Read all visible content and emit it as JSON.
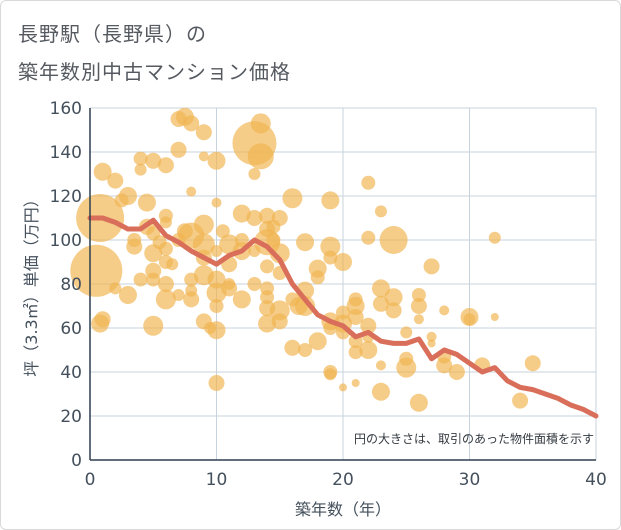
{
  "header": {
    "title_line1": "長野駅（長野県）の",
    "title_line2": "築年数別中古マンション価格"
  },
  "chart_data": {
    "type": "scatter",
    "title": "長野駅（長野県）の築年数別中古マンション価格",
    "xlabel": "築年数（年）",
    "ylabel": "坪（3.3㎡）単価（万円）",
    "xlim": [
      0,
      40
    ],
    "ylim": [
      0,
      160
    ],
    "xticks": [
      0,
      10,
      20,
      30,
      40
    ],
    "yticks": [
      0,
      20,
      40,
      60,
      80,
      100,
      120,
      140,
      160
    ],
    "grid": true,
    "note": "円の大きさは、取引のあった物件面積を示す",
    "colors": {
      "bubble": "#f0b450",
      "trend": "#d96f5b",
      "grid": "#c9d3de",
      "axis": "#2f3f4f"
    },
    "bubbles": [
      [
        0.5,
        86,
        26
      ],
      [
        0.8,
        110,
        24
      ],
      [
        1,
        131,
        9
      ],
      [
        0.8,
        62,
        9
      ],
      [
        1,
        64,
        8
      ],
      [
        2,
        127,
        8
      ],
      [
        2,
        78,
        6
      ],
      [
        2.5,
        118,
        7
      ],
      [
        3,
        120,
        9
      ],
      [
        3,
        75,
        9
      ],
      [
        3.5,
        100,
        7
      ],
      [
        3.5,
        97,
        8
      ],
      [
        4,
        137,
        7
      ],
      [
        4,
        132,
        6
      ],
      [
        4,
        82,
        7
      ],
      [
        4.5,
        117,
        9
      ],
      [
        4.5,
        106,
        8
      ],
      [
        5,
        136,
        8
      ],
      [
        5,
        103,
        7
      ],
      [
        5,
        94,
        9
      ],
      [
        5,
        86,
        8
      ],
      [
        5,
        82,
        7
      ],
      [
        5,
        61,
        10
      ],
      [
        5.5,
        99,
        7
      ],
      [
        6,
        134,
        8
      ],
      [
        6,
        111,
        7
      ],
      [
        6,
        108,
        6
      ],
      [
        6,
        96,
        7
      ],
      [
        6,
        90,
        7
      ],
      [
        6,
        80,
        8
      ],
      [
        6,
        73,
        10
      ],
      [
        6.5,
        89,
        6
      ],
      [
        7,
        155,
        8
      ],
      [
        7,
        141,
        8
      ],
      [
        7,
        100,
        7
      ],
      [
        7,
        75,
        6
      ],
      [
        7.5,
        156,
        9
      ],
      [
        7.5,
        104,
        8
      ],
      [
        8,
        153,
        8
      ],
      [
        8,
        122,
        5
      ],
      [
        8,
        102,
        13
      ],
      [
        8,
        82,
        7
      ],
      [
        8,
        73,
        8
      ],
      [
        8,
        77,
        6
      ],
      [
        9,
        149,
        8
      ],
      [
        9,
        138,
        5
      ],
      [
        9,
        107,
        10
      ],
      [
        9,
        98,
        11
      ],
      [
        9,
        92,
        8
      ],
      [
        9,
        84,
        10
      ],
      [
        9,
        63,
        8
      ],
      [
        9.5,
        60,
        6
      ],
      [
        10,
        136,
        9
      ],
      [
        10,
        117,
        5
      ],
      [
        10,
        95,
        6
      ],
      [
        10,
        82,
        9
      ],
      [
        10,
        76,
        10
      ],
      [
        10,
        70,
        7
      ],
      [
        10,
        59,
        9
      ],
      [
        10,
        35,
        8
      ],
      [
        10.5,
        104,
        7
      ],
      [
        11,
        98,
        10
      ],
      [
        11,
        89,
        8
      ],
      [
        11,
        80,
        6
      ],
      [
        11,
        78,
        8
      ],
      [
        12,
        112,
        9
      ],
      [
        12,
        100,
        7
      ],
      [
        12,
        95,
        9
      ],
      [
        12,
        73,
        9
      ],
      [
        13,
        144,
        22
      ],
      [
        13,
        130,
        6
      ],
      [
        13,
        110,
        8
      ],
      [
        13,
        95,
        6
      ],
      [
        13,
        80,
        7
      ],
      [
        13.5,
        153,
        10
      ],
      [
        13.5,
        138,
        13
      ],
      [
        14,
        111,
        8
      ],
      [
        14,
        105,
        8
      ],
      [
        14,
        99,
        13
      ],
      [
        14,
        88,
        7
      ],
      [
        14,
        78,
        7
      ],
      [
        14,
        74,
        7
      ],
      [
        14,
        69,
        8
      ],
      [
        14,
        62,
        9
      ],
      [
        14.5,
        106,
        7
      ],
      [
        14.5,
        100,
        7
      ],
      [
        15,
        110,
        8
      ],
      [
        15,
        94,
        10
      ],
      [
        15,
        85,
        7
      ],
      [
        15,
        68,
        10
      ],
      [
        15,
        63,
        8
      ],
      [
        16,
        119,
        10
      ],
      [
        16,
        73,
        7
      ],
      [
        16,
        51,
        8
      ],
      [
        16.5,
        70,
        9
      ],
      [
        17,
        99,
        9
      ],
      [
        17,
        77,
        9
      ],
      [
        17,
        70,
        10
      ],
      [
        17,
        50,
        7
      ],
      [
        18,
        87,
        9
      ],
      [
        18,
        83,
        7
      ],
      [
        18,
        54,
        9
      ],
      [
        19,
        118,
        9
      ],
      [
        19,
        97,
        10
      ],
      [
        19,
        92,
        7
      ],
      [
        19,
        63,
        9
      ],
      [
        19,
        60,
        7
      ],
      [
        19,
        40,
        7
      ],
      [
        19,
        39,
        6
      ],
      [
        20,
        90,
        9
      ],
      [
        20,
        67,
        7
      ],
      [
        20,
        62,
        9
      ],
      [
        20,
        58,
        7
      ],
      [
        20,
        33,
        4
      ],
      [
        21,
        73,
        7
      ],
      [
        21,
        70,
        9
      ],
      [
        21,
        65,
        8
      ],
      [
        21,
        54,
        7
      ],
      [
        21,
        49,
        7
      ],
      [
        21,
        35,
        4
      ],
      [
        22,
        126,
        7
      ],
      [
        22,
        101,
        7
      ],
      [
        22,
        61,
        8
      ],
      [
        22,
        56,
        6
      ],
      [
        22,
        50,
        9
      ],
      [
        23,
        113,
        6
      ],
      [
        23,
        78,
        9
      ],
      [
        23,
        71,
        8
      ],
      [
        23,
        43,
        5
      ],
      [
        23,
        31,
        9
      ],
      [
        24,
        100,
        14
      ],
      [
        24,
        74,
        9
      ],
      [
        24,
        68,
        8
      ],
      [
        25,
        58,
        6
      ],
      [
        25,
        46,
        7
      ],
      [
        25,
        42,
        10
      ],
      [
        26,
        75,
        7
      ],
      [
        26,
        70,
        8
      ],
      [
        26,
        64,
        5
      ],
      [
        26,
        26,
        9
      ],
      [
        27,
        88,
        8
      ],
      [
        27,
        56,
        5
      ],
      [
        27,
        53,
        4
      ],
      [
        28,
        68,
        5
      ],
      [
        28,
        47,
        7
      ],
      [
        28,
        43,
        8
      ],
      [
        29,
        40,
        8
      ],
      [
        30,
        65,
        9
      ],
      [
        30,
        64,
        6
      ],
      [
        31,
        43,
        8
      ],
      [
        32,
        101,
        6
      ],
      [
        32,
        65,
        4
      ],
      [
        34,
        27,
        8
      ],
      [
        35,
        44,
        8
      ]
    ],
    "trend": {
      "x": [
        0,
        1,
        2,
        3,
        4,
        5,
        6,
        7,
        8,
        9,
        10,
        11,
        12,
        13,
        14,
        15,
        16,
        17,
        18,
        19,
        20,
        21,
        22,
        23,
        24,
        25,
        26,
        27,
        28,
        29,
        30,
        31,
        32,
        33,
        34,
        35,
        36,
        37,
        38,
        39,
        40
      ],
      "y": [
        110,
        110,
        108,
        105,
        105,
        109,
        102,
        99,
        95,
        92,
        89,
        93,
        95,
        100,
        97,
        91,
        80,
        73,
        66,
        63,
        61,
        56,
        58,
        54,
        53,
        53,
        55,
        46,
        50,
        48,
        44,
        40,
        42,
        36,
        33,
        32,
        30,
        28,
        25,
        23,
        20
      ]
    }
  }
}
